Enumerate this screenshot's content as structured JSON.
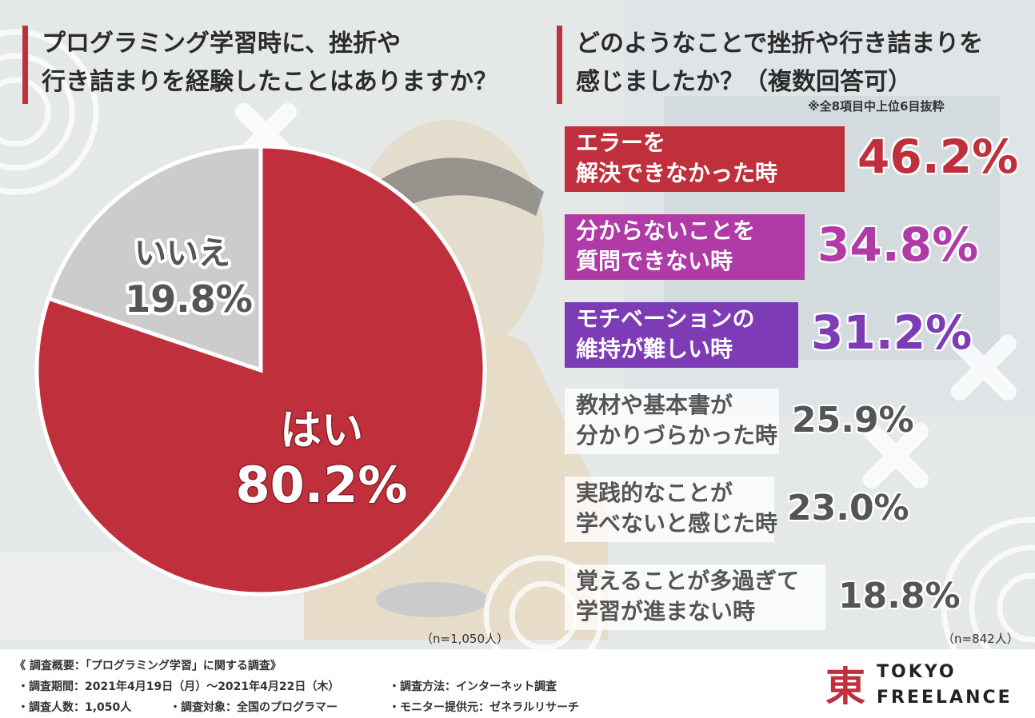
{
  "left_question": {
    "line1": "プログラミング学習時に、挫折や",
    "line2": "行き詰まりを経験したことはありますか？",
    "sample": "（n=1,050人）"
  },
  "right_question": {
    "line1": "どのようなことで挫折や行き詰まりを",
    "line2": "感じましたか？（複数回答可）",
    "note": "※全8項目中上位6目抜粋",
    "sample": "（n=842人）"
  },
  "pie_labels": {
    "yes_name": "はい",
    "yes_value": "80.2%",
    "no_name": "いいえ",
    "no_value": "19.8%"
  },
  "items": [
    {
      "line1": "エラーを",
      "line2": "解決できなかった時",
      "pct": "46.2%",
      "color": "#c0303c"
    },
    {
      "line1": "分からないことを",
      "line2": "質問できない時",
      "pct": "34.8%",
      "color": "#b03aa6"
    },
    {
      "line1": "モチベーションの",
      "line2": "維持が難しい時",
      "pct": "31.2%",
      "color": "#7d3bb5"
    },
    {
      "line1": "教材や基本書が",
      "line2": "分かりづらかった時",
      "pct": "25.9%",
      "color": "#555555"
    },
    {
      "line1": "実践的なことが",
      "line2": "学べないと感じた時",
      "pct": "23.0%",
      "color": "#555555"
    },
    {
      "line1": "覚えることが多過ぎて",
      "line2": "学習が進まない時",
      "pct": "18.8%",
      "color": "#555555"
    }
  ],
  "chart_data": [
    {
      "type": "pie",
      "title": "プログラミング学習時に、挫折や行き詰まりを経験したことはありますか？",
      "categories": [
        "はい",
        "いいえ"
      ],
      "values": [
        80.2,
        19.8
      ],
      "colors": [
        "#c0303c",
        "#cccccc"
      ],
      "n": "n=1,050人"
    },
    {
      "type": "bar",
      "title": "どのようなことで挫折や行き詰まりを感じましたか？（複数回答可）",
      "categories": [
        "エラーを解決できなかった時",
        "分からないことを質問できない時",
        "モチベーションの維持が難しい時",
        "教材や基本書が分かりづらかった時",
        "実践的なことが学べないと感じた時",
        "覚えることが多過ぎて学習が進まない時"
      ],
      "values": [
        46.2,
        34.8,
        31.2,
        25.9,
        23.0,
        18.8
      ],
      "unit": "%",
      "n": "n=842人"
    }
  ],
  "footer": {
    "heading": "《 調査概要：「プログラミング学習」に関する調査》",
    "period": "・調査期間：2021年4月19日（月）〜2021年4月22日（木）",
    "method": "・調査方法：インターネット調査",
    "count": "・調査人数：1,050人",
    "target": "・調査対象：全国のプログラマー",
    "provider": "・モニター提供元：ゼネラルリサーチ"
  },
  "logo": {
    "mark": "東",
    "line1": "TOKYO",
    "line2": "FREELANCE",
    "color": "#c0303c"
  }
}
